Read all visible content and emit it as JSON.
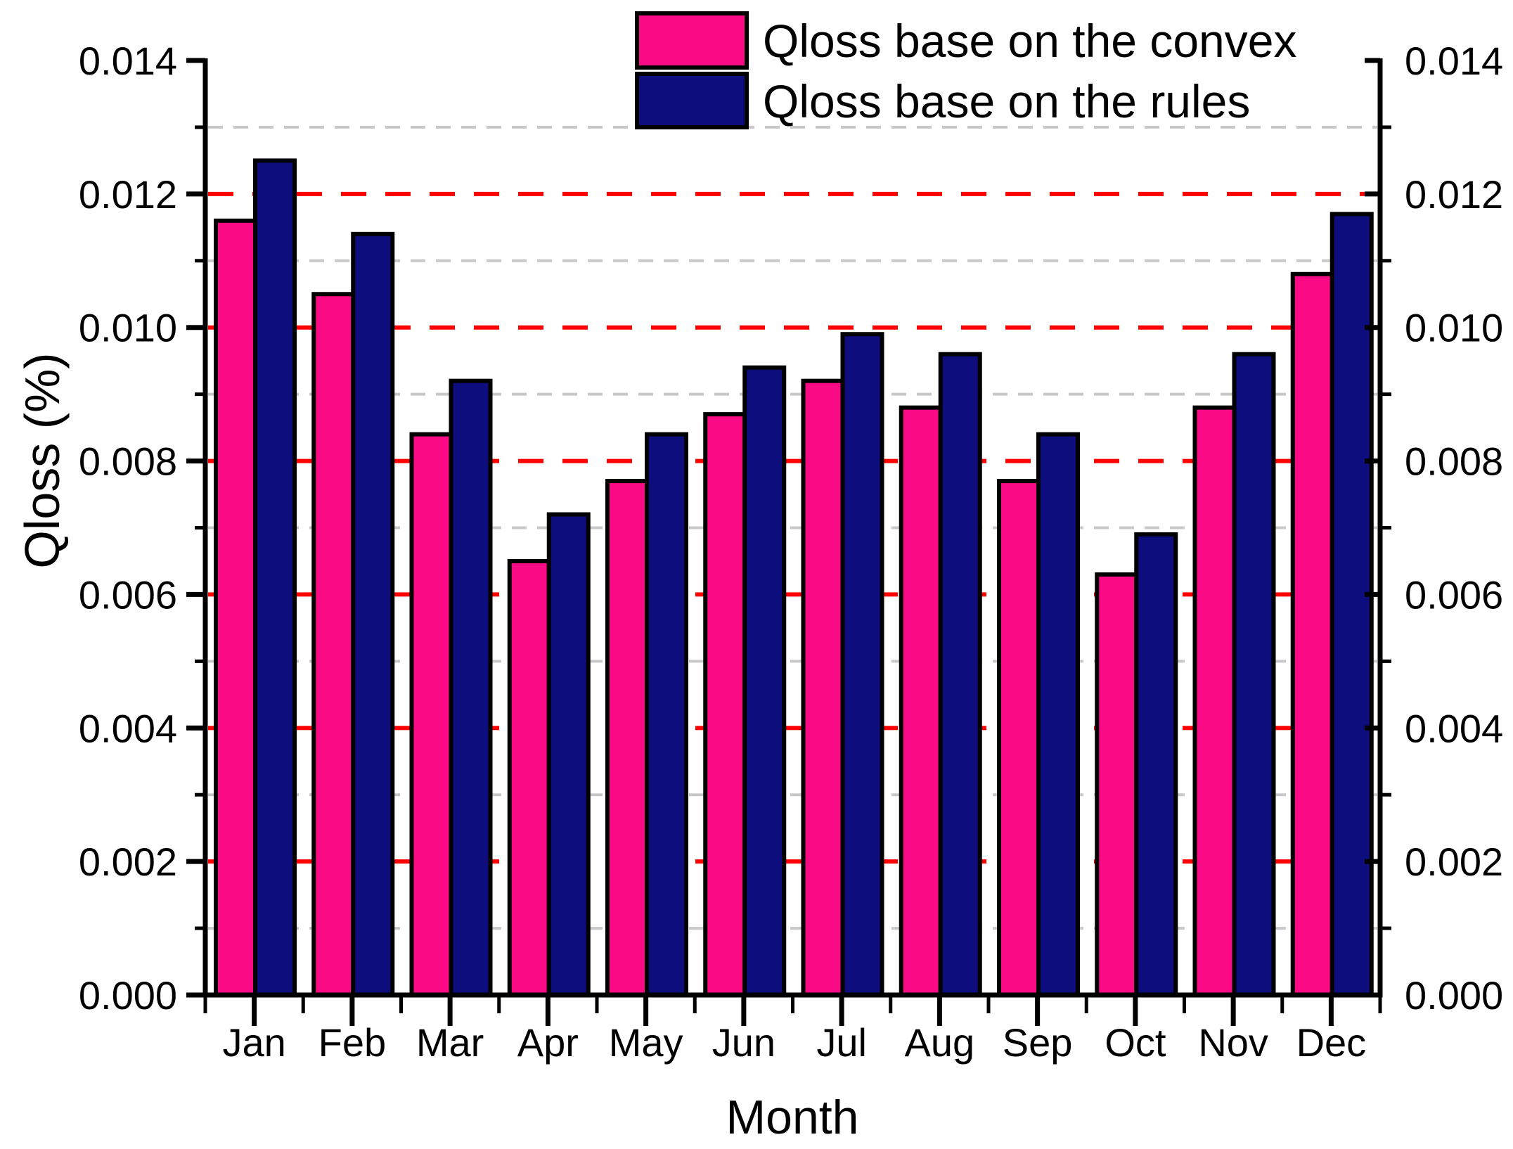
{
  "chart_data": {
    "type": "bar",
    "title": "",
    "categories": [
      "Jan",
      "Feb",
      "Mar",
      "Apr",
      "May",
      "Jun",
      "Jul",
      "Aug",
      "Sep",
      "Oct",
      "Nov",
      "Dec"
    ],
    "series": [
      {
        "name": "Qloss base on the convex",
        "color": "#FA0A84",
        "values": [
          0.0116,
          0.0105,
          0.0084,
          0.0065,
          0.0077,
          0.0087,
          0.0092,
          0.0088,
          0.0077,
          0.0063,
          0.0088,
          0.0108
        ]
      },
      {
        "name": "Qloss base on the rules",
        "color": "#0D0D7E",
        "values": [
          0.0125,
          0.0114,
          0.0092,
          0.0072,
          0.0084,
          0.0094,
          0.0099,
          0.0096,
          0.0084,
          0.0069,
          0.0096,
          0.0117
        ]
      }
    ],
    "xlabel": "Month",
    "ylabel": "Qloss (%)",
    "ylim": [
      0,
      0.014
    ],
    "ytick_step": 0.002,
    "minor_tick_step": 0.001,
    "ytick_labels": [
      "0.000",
      "0.002",
      "0.004",
      "0.006",
      "0.008",
      "0.010",
      "0.012",
      "0.014"
    ],
    "right_axis_labels": true,
    "legend_position": "top-center",
    "grid": {
      "major_color": "#FF0000",
      "major_style": "dashed",
      "minor_color": "#C8C8C8",
      "minor_style": "dashed"
    },
    "bar_outline_color": "#000000",
    "axis_color": "#000000",
    "background_color": "#FFFFFF"
  }
}
